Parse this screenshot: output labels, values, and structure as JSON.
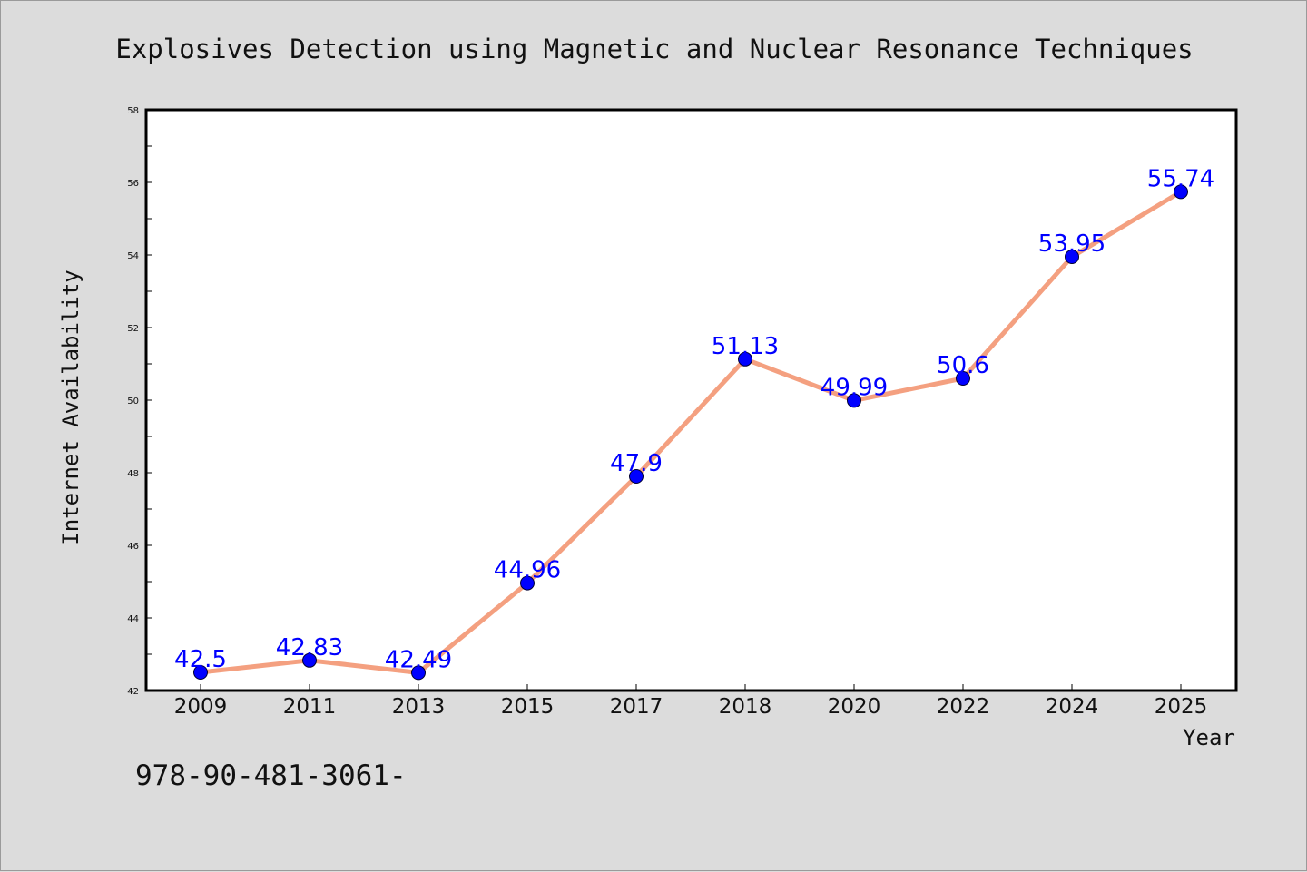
{
  "chart_data": {
    "type": "line",
    "title": "Explosives Detection using Magnetic and Nuclear Resonance Techniques",
    "xlabel": "Year",
    "ylabel": "Internet Availability",
    "x": [
      "2009",
      "2011",
      "2013",
      "2015",
      "2017",
      "2018",
      "2020",
      "2022",
      "2024",
      "2025"
    ],
    "series": [
      {
        "values": [
          42.5,
          42.83,
          42.49,
          44.96,
          47.9,
          51.13,
          49.99,
          50.6,
          53.95,
          55.74
        ],
        "labels": [
          "42.5",
          "42.83",
          "42.49",
          "44.96",
          "47.9",
          "51.13",
          "49.99",
          "50.6",
          "53.95",
          "55.74"
        ],
        "line_color": "#f4a080",
        "marker_color": "#0000ff"
      }
    ],
    "ylim": [
      42,
      58
    ],
    "yticks": [
      "42",
      "44",
      "46",
      "48",
      "50",
      "52",
      "54",
      "56",
      "58"
    ],
    "grid": false,
    "legend": "none"
  },
  "footnote": "978-90-481-3061-",
  "colors": {
    "background": "#dcdcdc",
    "plot_background": "#ffffff",
    "label_color": "#0000ff"
  }
}
